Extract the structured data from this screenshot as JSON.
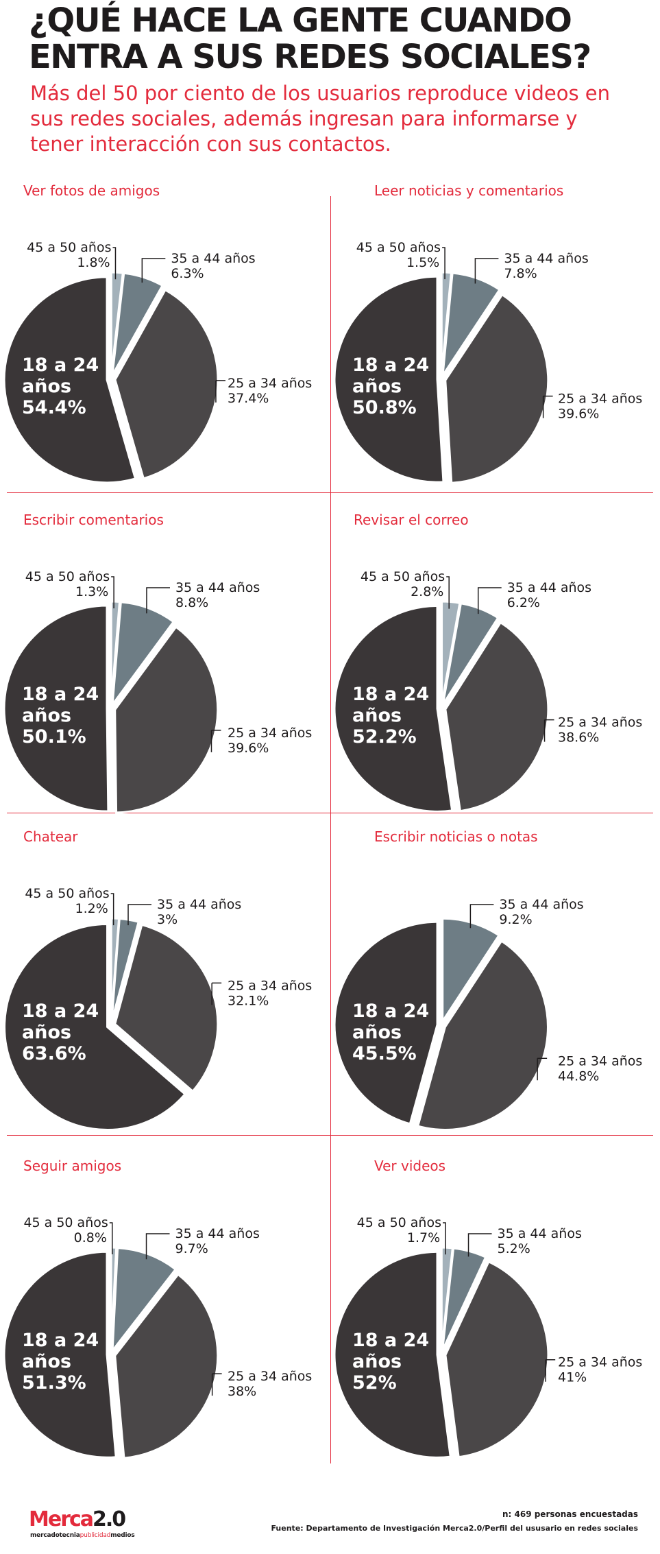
{
  "header": {
    "title": "¿QUÉ HACE LA GENTE CUANDO ENTRA A SUS REDES SOCIALES?",
    "subtitle": "Más del 50 por ciento de los usuarios reproduce videos en sus redes sociales, además ingresan para informarse y tener interacción con sus contactos."
  },
  "colors": {
    "accent": "#e32b3c",
    "age_18_24": "#3a3637",
    "age_25_34": "#4a4748",
    "age_35_44": "#6e7d85",
    "age_45_50": "#a3b1ba"
  },
  "chart_data": [
    {
      "type": "pie",
      "title": "Ver fotos de amigos",
      "slices": [
        {
          "label": "45 a 50 años",
          "value": 1.8,
          "display": "1.8%"
        },
        {
          "label": "35 a 44 años",
          "value": 6.3,
          "display": "6.3%"
        },
        {
          "label": "25 a 34 años",
          "value": 37.4,
          "display": "37.4%"
        },
        {
          "label": "18 a 24 años",
          "value": 54.4,
          "display": "54.4%"
        }
      ]
    },
    {
      "type": "pie",
      "title": "Leer noticias y comentarios",
      "slices": [
        {
          "label": "45 a 50 años",
          "value": 1.5,
          "display": "1.5%"
        },
        {
          "label": "35 a 44 años",
          "value": 7.8,
          "display": "7.8%"
        },
        {
          "label": "25 a 34 años",
          "value": 39.6,
          "display": "39.6%"
        },
        {
          "label": "18 a 24 años",
          "value": 50.8,
          "display": "50.8%"
        }
      ]
    },
    {
      "type": "pie",
      "title": "Escribir comentarios",
      "slices": [
        {
          "label": "45 a 50 años",
          "value": 1.3,
          "display": "1.3%"
        },
        {
          "label": "35 a 44 años",
          "value": 8.8,
          "display": "8.8%"
        },
        {
          "label": "25 a 34 años",
          "value": 39.6,
          "display": "39.6%"
        },
        {
          "label": "18 a 24 años",
          "value": 50.1,
          "display": "50.1%"
        }
      ]
    },
    {
      "type": "pie",
      "title": "Revisar el correo",
      "slices": [
        {
          "label": "45 a 50 años",
          "value": 2.8,
          "display": "2.8%"
        },
        {
          "label": "35 a 44 años",
          "value": 6.2,
          "display": "6.2%"
        },
        {
          "label": "25 a 34 años",
          "value": 38.6,
          "display": "38.6%"
        },
        {
          "label": "18 a 24 años",
          "value": 52.2,
          "display": "52.2%"
        }
      ]
    },
    {
      "type": "pie",
      "title": "Chatear",
      "slices": [
        {
          "label": "45 a 50 años",
          "value": 1.2,
          "display": "1.2%"
        },
        {
          "label": "35 a 44 años",
          "value": 3,
          "display": "3%"
        },
        {
          "label": "25 a 34 años",
          "value": 32.1,
          "display": "32.1%"
        },
        {
          "label": "18 a 24 años",
          "value": 63.6,
          "display": "63.6%"
        }
      ]
    },
    {
      "type": "pie",
      "title": "Escribir noticias o notas",
      "slices": [
        {
          "label": "35 a 44 años",
          "value": 9.2,
          "display": "9.2%"
        },
        {
          "label": "25 a 34 años",
          "value": 44.8,
          "display": "44.8%"
        },
        {
          "label": "18 a 24 años",
          "value": 45.5,
          "display": "45.5%"
        }
      ]
    },
    {
      "type": "pie",
      "title": "Seguir amigos",
      "slices": [
        {
          "label": "45 a 50 años",
          "value": 0.8,
          "display": "0.8%"
        },
        {
          "label": "35 a 44 años",
          "value": 9.7,
          "display": "9.7%"
        },
        {
          "label": "25 a 34 años",
          "value": 38,
          "display": "38%"
        },
        {
          "label": "18 a 24 años",
          "value": 51.3,
          "display": "51.3%"
        }
      ]
    },
    {
      "type": "pie",
      "title": "Ver videos",
      "slices": [
        {
          "label": "45 a 50 años",
          "value": 1.7,
          "display": "1.7%"
        },
        {
          "label": "35 a 44 años",
          "value": 5.2,
          "display": "5.2%"
        },
        {
          "label": "25 a 34 años",
          "value": 41,
          "display": "41%"
        },
        {
          "label": "18 a 24 años",
          "value": 52,
          "display": "52%"
        }
      ]
    }
  ],
  "footer": {
    "sample": "n: 469 personas encuestadas",
    "source": "Fuente: Departamento de Investigación Merca2.0/Perfil del ususario en redes sociales",
    "logo_brand": "Merca",
    "logo_version": "2.0",
    "logo_tagline_a": "mercadotecnia",
    "logo_tagline_b": "publicidad",
    "logo_tagline_c": "medios"
  }
}
